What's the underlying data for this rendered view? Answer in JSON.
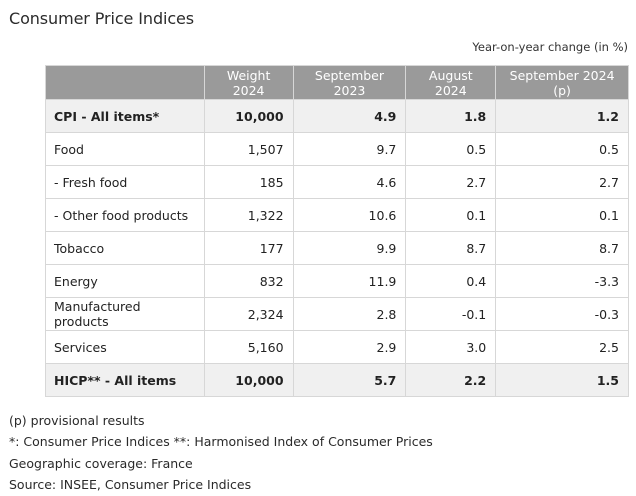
{
  "title": "Consumer Price Indices",
  "unit_note": "Year-on-year change (in %)",
  "table": {
    "headers": [
      "",
      "Weight 2024",
      "September 2023",
      "August 2024",
      "September 2024 (p)"
    ],
    "rows": [
      {
        "label": "CPI - All items*",
        "weight": "10,000",
        "sep2023": "4.9",
        "aug2024": "1.8",
        "sep2024": "1.2",
        "bold": true
      },
      {
        "label": "Food",
        "weight": "1,507",
        "sep2023": "9.7",
        "aug2024": "0.5",
        "sep2024": "0.5",
        "bold": false
      },
      {
        "label": "- Fresh food",
        "weight": "185",
        "sep2023": "4.6",
        "aug2024": "2.7",
        "sep2024": "2.7",
        "bold": false
      },
      {
        "label": "- Other food products",
        "weight": "1,322",
        "sep2023": "10.6",
        "aug2024": "0.1",
        "sep2024": "0.1",
        "bold": false
      },
      {
        "label": "Tobacco",
        "weight": "177",
        "sep2023": "9.9",
        "aug2024": "8.7",
        "sep2024": "8.7",
        "bold": false
      },
      {
        "label": "Energy",
        "weight": "832",
        "sep2023": "11.9",
        "aug2024": "0.4",
        "sep2024": "-3.3",
        "bold": false
      },
      {
        "label": "Manufactured products",
        "weight": "2,324",
        "sep2023": "2.8",
        "aug2024": "-0.1",
        "sep2024": "-0.3",
        "bold": false
      },
      {
        "label": "Services",
        "weight": "5,160",
        "sep2023": "2.9",
        "aug2024": "3.0",
        "sep2024": "2.5",
        "bold": false
      },
      {
        "label": "HICP** - All items",
        "weight": "10,000",
        "sep2023": "5.7",
        "aug2024": "2.2",
        "sep2024": "1.5",
        "bold": true
      }
    ]
  },
  "notes": [
    "(p) provisional results",
    "*: Consumer Price Indices **: Harmonised Index of Consumer Prices",
    "Geographic coverage: France",
    "Source: INSEE, Consumer Price Indices"
  ],
  "colors": {
    "header_bg": "#9a9a9a",
    "highlight_row_bg": "#f0f0f0",
    "border": "#d7d7d7"
  }
}
